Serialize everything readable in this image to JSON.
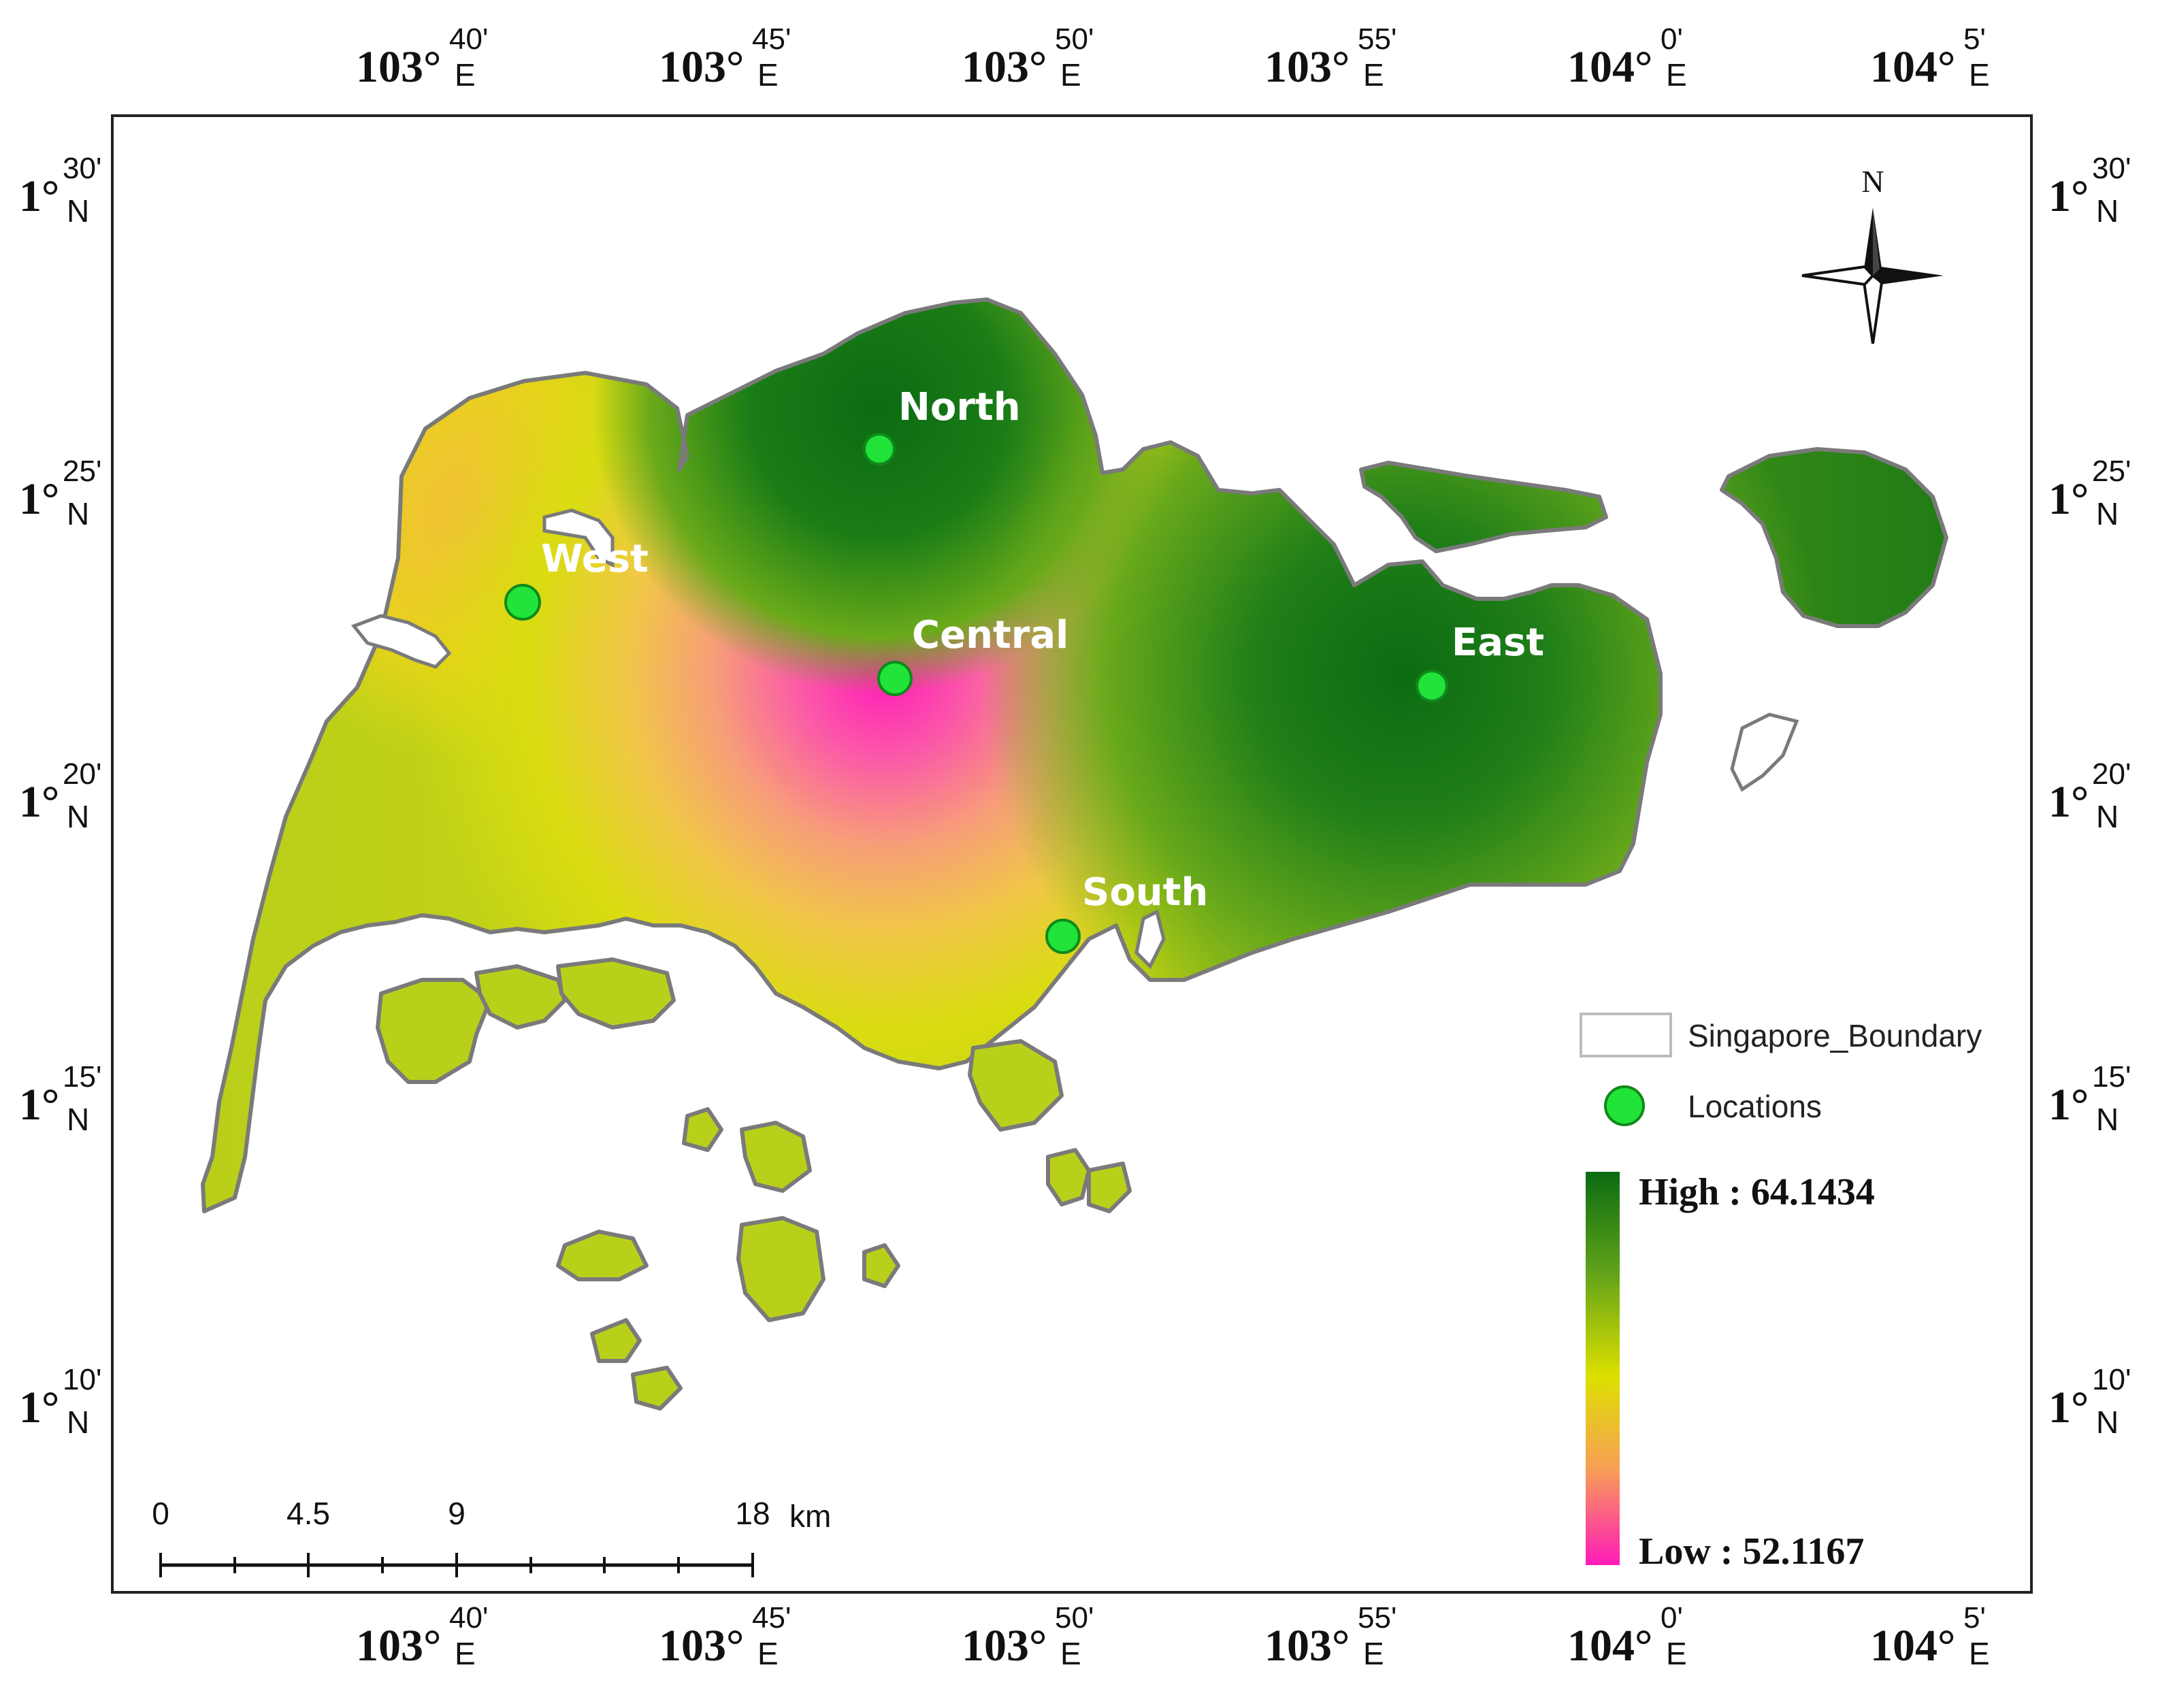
{
  "top_axis": [
    {
      "deg": "103°",
      "min": "40'",
      "dir": "E"
    },
    {
      "deg": "103°",
      "min": "45'",
      "dir": "E"
    },
    {
      "deg": "103°",
      "min": "50'",
      "dir": "E"
    },
    {
      "deg": "103°",
      "min": "55'",
      "dir": "E"
    },
    {
      "deg": "104°",
      "min": "0'",
      "dir": "E"
    },
    {
      "deg": "104°",
      "min": "5'",
      "dir": "E"
    }
  ],
  "left_axis": [
    {
      "deg": "1°",
      "min": "30'",
      "dir": "N"
    },
    {
      "deg": "1°",
      "min": "25'",
      "dir": "N"
    },
    {
      "deg": "1°",
      "min": "20'",
      "dir": "N"
    },
    {
      "deg": "1°",
      "min": "15'",
      "dir": "N"
    },
    {
      "deg": "1°",
      "min": "10'",
      "dir": "N"
    }
  ],
  "north_arrow": {
    "label": "N",
    "icon": "compass-rose-icon"
  },
  "locations": [
    {
      "name": "North"
    },
    {
      "name": "West"
    },
    {
      "name": "Central"
    },
    {
      "name": "East"
    },
    {
      "name": "South"
    }
  ],
  "legend": {
    "boundary_label": "Singapore_Boundary",
    "locations_label": "Locations",
    "high_label": "High : 64.1434",
    "low_label": "Low : 52.1167",
    "high_value": 64.1434,
    "low_value": 52.1167,
    "colors": {
      "high": "#0b6b12",
      "mid_high": "#6aaa1a",
      "mid": "#d9e000",
      "mid_low": "#f6a24a",
      "low": "#ff1bb8",
      "location_marker": "#22e33a"
    }
  },
  "scale_bar": {
    "labels": [
      "0",
      "4.5",
      "9",
      "18"
    ],
    "unit": "km"
  }
}
